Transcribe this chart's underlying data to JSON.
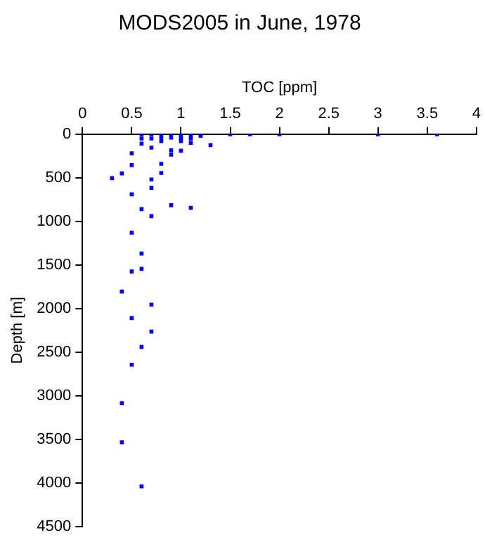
{
  "chart_data": {
    "type": "scatter",
    "title": "MODS2005 in June, 1978",
    "xlabel": "TOC [ppm]",
    "ylabel": "Depth [m]",
    "xlim": [
      0,
      4
    ],
    "xticks": [
      0,
      0.5,
      1,
      1.5,
      2,
      2.5,
      3,
      3.5,
      4
    ],
    "ylim": [
      4500,
      0
    ],
    "yticks": [
      0,
      500,
      1000,
      1500,
      2000,
      2500,
      3000,
      3500,
      4000,
      4500
    ],
    "grid": false,
    "legend": false,
    "marker": "square",
    "series": [
      {
        "color": "#0000ff",
        "x": [
          0.6,
          0.6,
          0.7,
          0.7,
          0.8,
          0.8,
          0.8,
          0.9,
          0.9,
          1.0,
          1.0,
          1.0,
          1.1,
          1.1,
          1.1,
          1.2,
          1.2,
          1.5,
          1.7,
          2.0,
          3.0,
          3.6,
          0.5,
          0.5,
          0.4,
          0.3,
          0.5,
          0.6,
          0.7,
          0.9,
          1.1,
          0.7,
          0.7,
          0.8,
          0.8,
          0.9,
          0.9,
          1.0,
          1.3,
          0.7,
          0.6,
          0.5,
          0.6,
          0.6,
          0.5,
          0.4,
          0.7,
          0.5,
          0.7,
          0.6,
          0.5,
          0.4,
          0.4,
          0.6
        ],
        "values": [
          0,
          50,
          0,
          50,
          0,
          40,
          80,
          0,
          40,
          0,
          40,
          80,
          10,
          50,
          100,
          0,
          20,
          0,
          0,
          0,
          0,
          0,
          220,
          355,
          450,
          505,
          690,
          860,
          940,
          815,
          845,
          520,
          615,
          340,
          445,
          235,
          185,
          190,
          125,
          155,
          110,
          1130,
          1370,
          1545,
          1575,
          1805,
          1955,
          2110,
          2265,
          2440,
          2645,
          3085,
          3535,
          4040
        ]
      }
    ]
  }
}
